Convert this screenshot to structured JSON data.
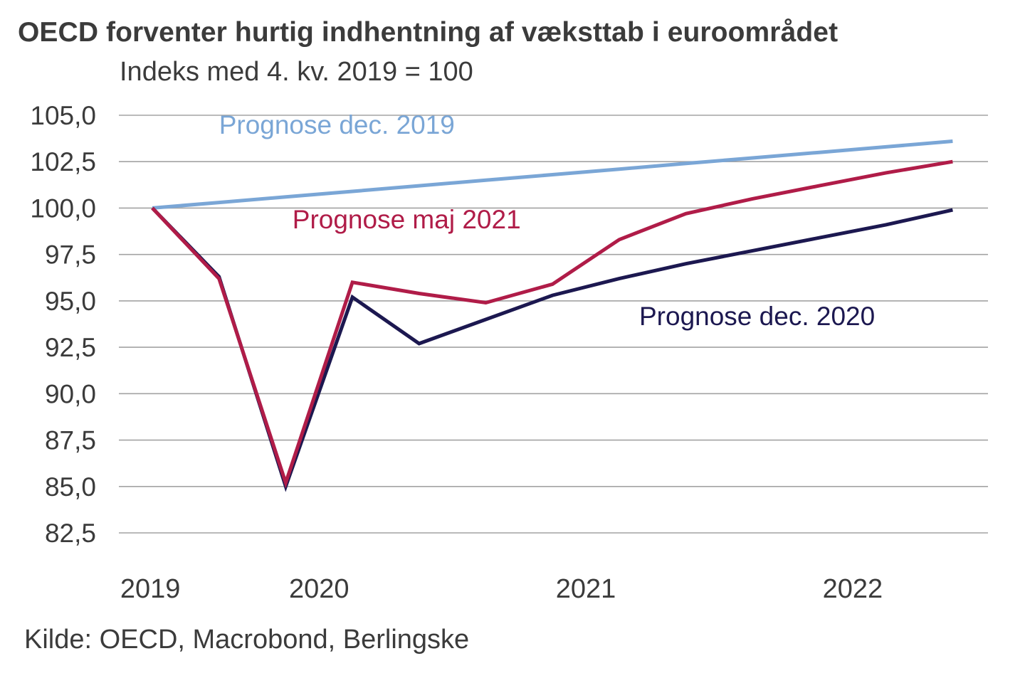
{
  "header": {
    "title": "OECD forventer hurtig indhentning af væksttab i euroområdet",
    "subtitle": "Indeks med 4. kv. 2019 = 100"
  },
  "footer": {
    "source": "Kilde: OECD, Macrobond, Berlingske"
  },
  "chart_data": {
    "type": "line",
    "title": "OECD forventer hurtig indhentning af væksttab i euroområdet",
    "subtitle": "Indeks med 4. kv. 2019 = 100",
    "xlabel": "",
    "ylabel": "",
    "x": [
      "2019K4",
      "2020K1",
      "2020K2",
      "2020K3",
      "2020K4",
      "2021K1",
      "2021K2",
      "2021K3",
      "2021K4",
      "2022K1",
      "2022K2",
      "2022K3",
      "2022K4"
    ],
    "x_tick_labels": [
      {
        "label": "2019",
        "at_index": -0.03
      },
      {
        "label": "2020",
        "at_index": 2.5
      },
      {
        "label": "2021",
        "at_index": 6.5
      },
      {
        "label": "2022",
        "at_index": 10.5
      }
    ],
    "ylim": [
      82.5,
      105.0
    ],
    "y_ticks": [
      105.0,
      102.5,
      100.0,
      97.5,
      95.0,
      92.5,
      90.0,
      87.5,
      85.0,
      82.5
    ],
    "y_tick_labels": [
      "105,0",
      "102,5",
      "100,0",
      "97,5",
      "95,0",
      "92,5",
      "90,0",
      "87,5",
      "85,0",
      "82,5"
    ],
    "grid": true,
    "legend": "inline-annotations",
    "series": [
      {
        "name": "Prognose dec. 2019",
        "color": "#7aa6d6",
        "values": [
          100.0,
          100.3,
          100.6,
          100.9,
          101.2,
          101.5,
          101.8,
          102.1,
          102.4,
          102.7,
          103.0,
          103.3,
          103.6
        ],
        "label_anchor": {
          "index": 1.0,
          "value": 104.0
        }
      },
      {
        "name": "Prognose dec. 2020",
        "color": "#1c1850",
        "values": [
          100.0,
          96.3,
          85.0,
          95.2,
          92.7,
          94.0,
          95.3,
          96.2,
          97.0,
          97.7,
          98.4,
          99.1,
          99.9
        ],
        "label_anchor": {
          "index": 7.3,
          "value": 93.7
        }
      },
      {
        "name": "Prognose maj 2021",
        "color": "#b01c48",
        "values": [
          100.0,
          96.2,
          85.2,
          96.0,
          95.4,
          94.9,
          95.9,
          98.3,
          99.7,
          100.5,
          101.2,
          101.9,
          102.5
        ],
        "label_anchor": {
          "index": 2.1,
          "value": 98.9
        }
      }
    ]
  }
}
